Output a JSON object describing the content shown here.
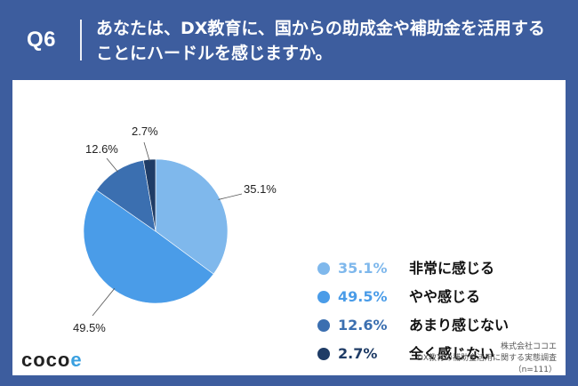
{
  "header": {
    "question_label": "Q6",
    "question_text": "あなたは、DX教育に、国からの助成金や補助金を活用することにハードルを感じますか。"
  },
  "chart_data": {
    "type": "pie",
    "categories": [
      "非常に感じる",
      "やや感じる",
      "あまり感じない",
      "全く感じない"
    ],
    "values": [
      35.1,
      49.5,
      12.6,
      2.7
    ],
    "value_labels": [
      "35.1%",
      "49.5%",
      "12.6%",
      "2.7%"
    ],
    "colors": [
      "#7fb8ec",
      "#4a9ce8",
      "#3b6fb0",
      "#1f3c66"
    ],
    "pct_colors": [
      "#7fb8ec",
      "#4a9ce8",
      "#3b6fb0",
      "#1f3c66"
    ],
    "start": "12 o'clock, clockwise",
    "legend_position": "right"
  },
  "logo": {
    "text_main": "coco",
    "text_accent": "e"
  },
  "credit": {
    "line1": "株式会社ココエ",
    "line2": "DX教育の補助金活用に関する実態調査",
    "line3": "（n=111）"
  }
}
